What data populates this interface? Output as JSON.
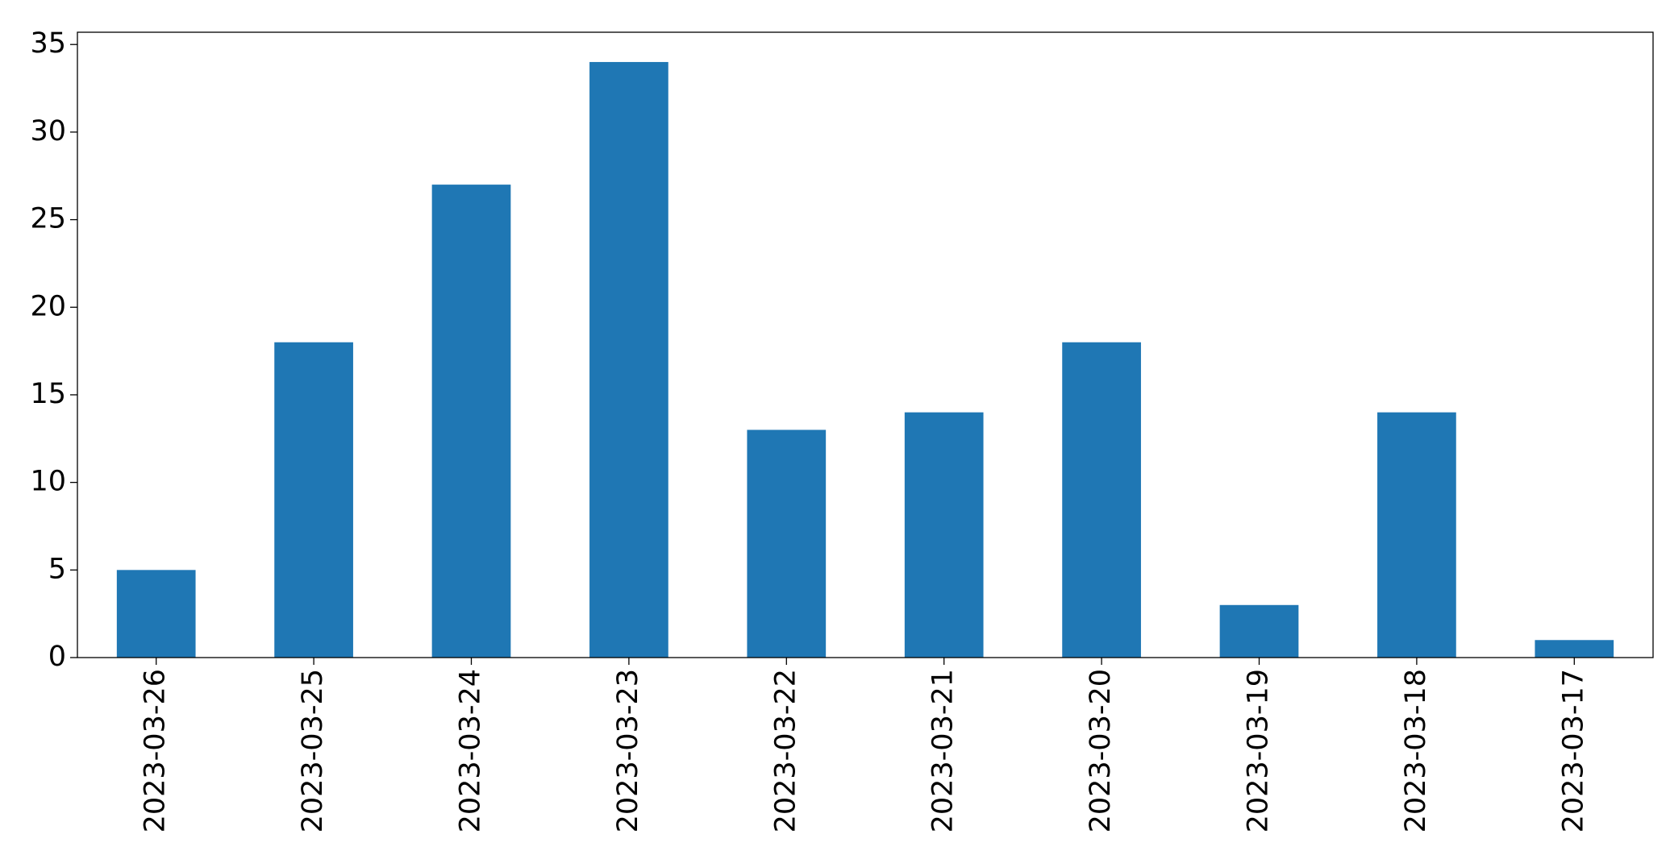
{
  "chart_data": {
    "type": "bar",
    "categories": [
      "2023-03-26",
      "2023-03-25",
      "2023-03-24",
      "2023-03-23",
      "2023-03-22",
      "2023-03-21",
      "2023-03-20",
      "2023-03-19",
      "2023-03-18",
      "2023-03-17"
    ],
    "values": [
      5,
      18,
      27,
      34,
      13,
      14,
      18,
      3,
      14,
      1
    ],
    "color": "#1f77b4",
    "ylim": [
      0,
      35.7
    ],
    "yticks": [
      0,
      5,
      10,
      15,
      20,
      25,
      30,
      35
    ],
    "grid": false
  }
}
